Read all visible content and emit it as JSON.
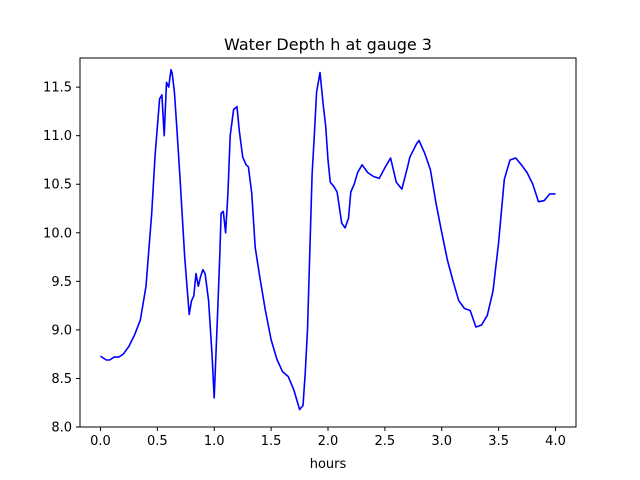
{
  "chart_data": {
    "type": "line",
    "title": "Water Depth h at gauge 3",
    "xlabel": "hours",
    "ylabel": "",
    "xlim": [
      -0.18,
      4.18
    ],
    "ylim": [
      8.0,
      11.8
    ],
    "xticks": [
      0.0,
      0.5,
      1.0,
      1.5,
      2.0,
      2.5,
      3.0,
      3.5,
      4.0
    ],
    "xtick_labels": [
      "0.0",
      "0.5",
      "1.0",
      "1.5",
      "2.0",
      "2.5",
      "3.0",
      "3.5",
      "4.0"
    ],
    "yticks": [
      8.0,
      8.5,
      9.0,
      9.5,
      10.0,
      10.5,
      11.0,
      11.5
    ],
    "ytick_labels": [
      "8.0",
      "8.5",
      "9.0",
      "9.5",
      "10.0",
      "10.5",
      "11.0",
      "11.5"
    ],
    "grid": false,
    "legend": "none",
    "series": [
      {
        "color": "#0000ff",
        "x": [
          0.0,
          0.05,
          0.08,
          0.12,
          0.16,
          0.2,
          0.25,
          0.3,
          0.35,
          0.4,
          0.45,
          0.48,
          0.52,
          0.54,
          0.56,
          0.58,
          0.6,
          0.62,
          0.63,
          0.65,
          0.67,
          0.7,
          0.74,
          0.78,
          0.8,
          0.82,
          0.84,
          0.86,
          0.88,
          0.9,
          0.92,
          0.95,
          0.98,
          1.0,
          1.03,
          1.05,
          1.06,
          1.08,
          1.1,
          1.12,
          1.14,
          1.17,
          1.2,
          1.22,
          1.25,
          1.28,
          1.3,
          1.33,
          1.36,
          1.4,
          1.45,
          1.5,
          1.55,
          1.6,
          1.65,
          1.7,
          1.75,
          1.78,
          1.8,
          1.82,
          1.84,
          1.86,
          1.88,
          1.9,
          1.93,
          1.96,
          1.98,
          2.0,
          2.02,
          2.05,
          2.08,
          2.12,
          2.15,
          2.18,
          2.2,
          2.23,
          2.26,
          2.3,
          2.35,
          2.4,
          2.45,
          2.5,
          2.55,
          2.6,
          2.65,
          2.7,
          2.72,
          2.75,
          2.78,
          2.8,
          2.85,
          2.9,
          2.95,
          3.0,
          3.05,
          3.1,
          3.15,
          3.2,
          3.25,
          3.3,
          3.35,
          3.4,
          3.45,
          3.5,
          3.55,
          3.6,
          3.65,
          3.7,
          3.75,
          3.8,
          3.85,
          3.9,
          3.95,
          4.0
        ],
        "y": [
          8.73,
          8.69,
          8.69,
          8.72,
          8.72,
          8.75,
          8.83,
          8.95,
          9.1,
          9.45,
          10.2,
          10.8,
          11.38,
          11.42,
          11.0,
          11.55,
          11.5,
          11.68,
          11.65,
          11.45,
          11.1,
          10.55,
          9.75,
          9.16,
          9.3,
          9.35,
          9.58,
          9.45,
          9.55,
          9.62,
          9.58,
          9.3,
          8.75,
          8.3,
          9.2,
          9.8,
          10.2,
          10.22,
          10.0,
          10.4,
          11.0,
          11.27,
          11.3,
          11.05,
          10.78,
          10.7,
          10.68,
          10.4,
          9.85,
          9.55,
          9.2,
          8.9,
          8.7,
          8.57,
          8.52,
          8.38,
          8.18,
          8.22,
          8.55,
          9.0,
          9.8,
          10.6,
          11.0,
          11.45,
          11.65,
          11.3,
          11.1,
          10.75,
          10.52,
          10.48,
          10.42,
          10.1,
          10.05,
          10.15,
          10.42,
          10.5,
          10.62,
          10.7,
          10.62,
          10.58,
          10.56,
          10.67,
          10.77,
          10.52,
          10.45,
          10.68,
          10.78,
          10.85,
          10.92,
          10.95,
          10.82,
          10.65,
          10.3,
          10.0,
          9.72,
          9.5,
          9.3,
          9.22,
          9.2,
          9.03,
          9.05,
          9.15,
          9.4,
          9.9,
          10.55,
          10.75,
          10.77,
          10.7,
          10.62,
          10.5,
          10.32,
          10.33,
          10.4,
          10.4
        ]
      }
    ]
  }
}
